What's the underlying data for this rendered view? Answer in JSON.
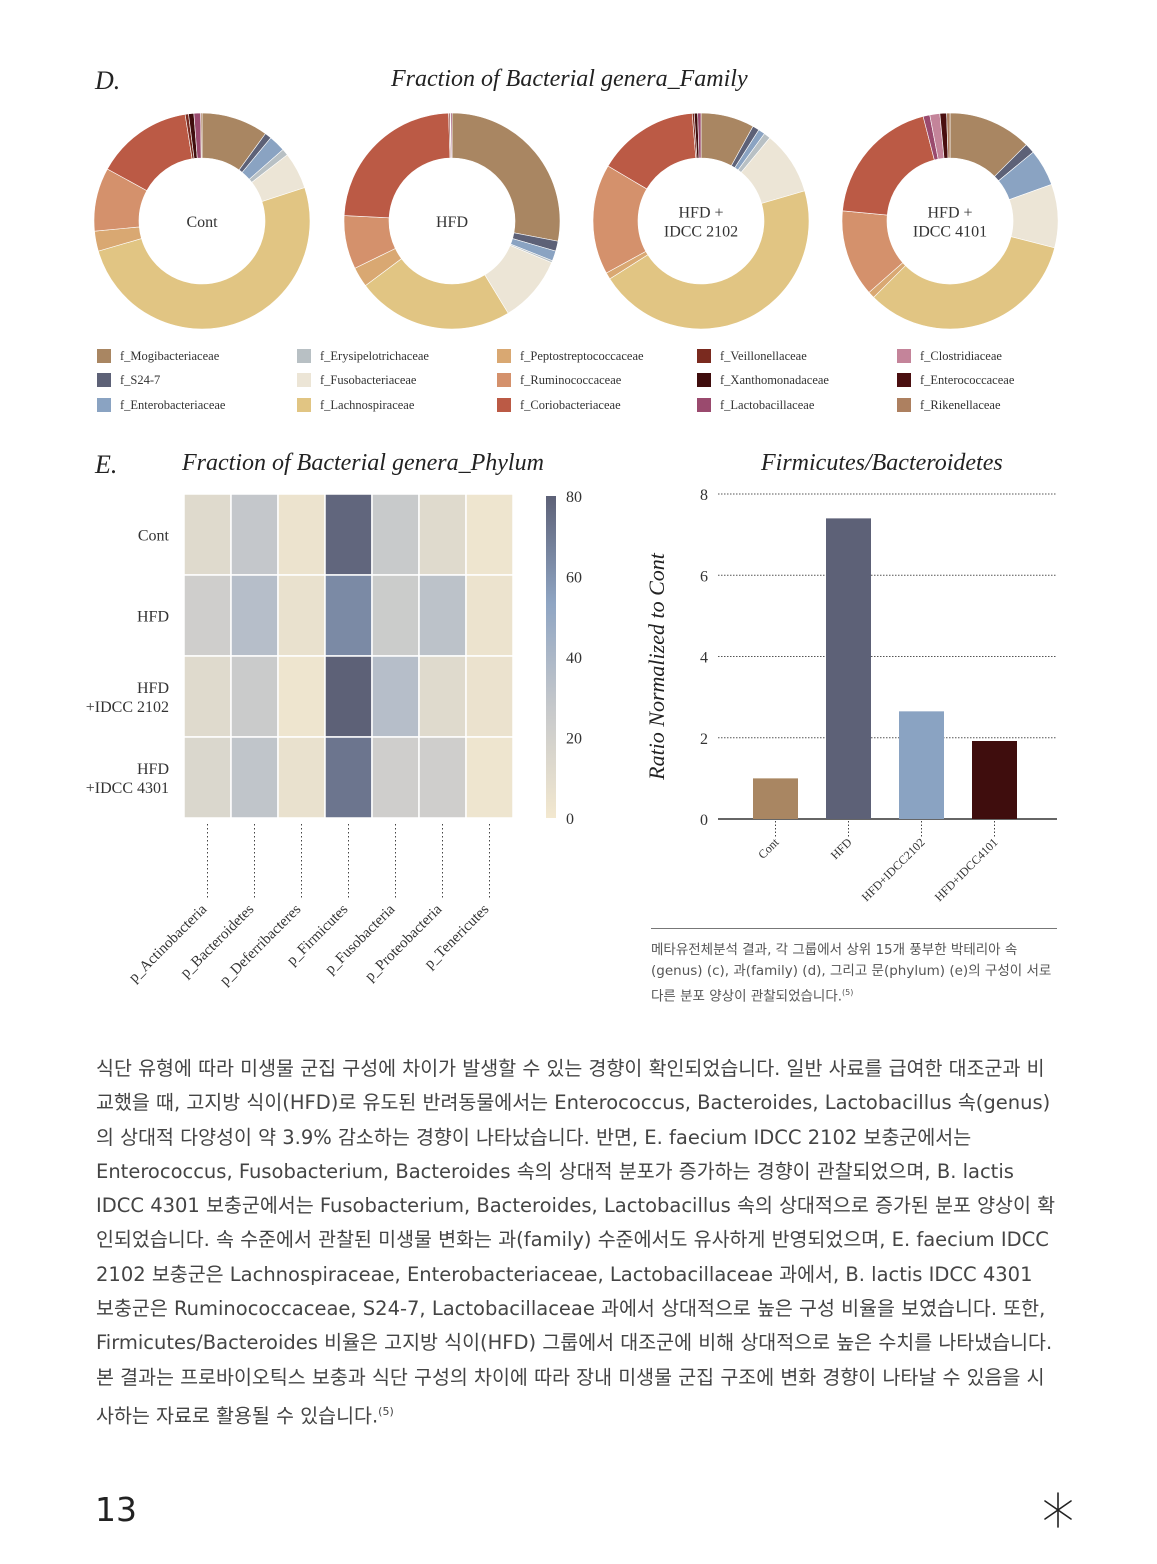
{
  "panel_d": {
    "letter": "D.",
    "title": "Fraction of Bacterial genera_Family",
    "groups": [
      "Cont",
      "HFD",
      "HFD + IDCC 2102",
      "HFD + IDCC 4101"
    ],
    "group_lines": [
      [
        "Cont"
      ],
      [
        "HFD"
      ],
      [
        "HFD +",
        "IDCC 2102"
      ],
      [
        "HFD +",
        "IDCC 4101"
      ]
    ]
  },
  "legend": [
    {
      "label": "f_Mogibacteriaceae",
      "color": "#a98662"
    },
    {
      "label": "f_S24-7",
      "color": "#5d6177"
    },
    {
      "label": "f_Enterobacteriaceae",
      "color": "#8aa3c2"
    },
    {
      "label": "f_Erysipelotrichaceae",
      "color": "#b8c0c4"
    },
    {
      "label": "f_Fusobacteriaceae",
      "color": "#ece5d6"
    },
    {
      "label": "f_Lachnospiraceae",
      "color": "#e1c583"
    },
    {
      "label": "f_Peptostreptococcaceae",
      "color": "#d9a872"
    },
    {
      "label": "f_Ruminococcaceae",
      "color": "#d4916c"
    },
    {
      "label": "f_Coriobacteriaceae",
      "color": "#bb5a45"
    },
    {
      "label": "f_Veillonellaceae",
      "color": "#7a2a1f"
    },
    {
      "label": "f_Xanthomonadaceae",
      "color": "#3f0d0d"
    },
    {
      "label": "f_Lactobacillaceae",
      "color": "#9a4a6e"
    },
    {
      "label": "f_Clostridiaceae",
      "color": "#c4849a"
    },
    {
      "label": "f_Enterococcaceae",
      "color": "#4a0f10"
    },
    {
      "label": "f_Rikenellaceae",
      "color": "#ad8060"
    }
  ],
  "panel_e": {
    "letter": "E.",
    "heatmap_title": "Fraction of Bacterial genera_Phylum",
    "bar_title": "Firmicutes/Bacteroidetes"
  },
  "chart_data": [
    {
      "type": "pie",
      "title": "Fraction of Bacterial genera_Family",
      "note": "donut charts, one per group; fractions estimated from slice areas",
      "categories": [
        "f_Mogibacteriaceae",
        "f_S24-7",
        "f_Enterobacteriaceae",
        "f_Erysipelotrichaceae",
        "f_Fusobacteriaceae",
        "f_Lachnospiraceae",
        "f_Peptostreptococcaceae",
        "f_Ruminococcaceae",
        "f_Coriobacteriaceae",
        "f_Veillonellaceae",
        "f_Xanthomonadaceae",
        "f_Lactobacillaceae",
        "f_Clostridiaceae",
        "f_Enterococcaceae",
        "f_Rikenellaceae"
      ],
      "series": [
        {
          "name": "Cont",
          "values": [
            10.0,
            1.0,
            2.5,
            1.0,
            5.5,
            50.5,
            3.0,
            9.5,
            14.5,
            0.5,
            0.8,
            1.0,
            0.0,
            0.0,
            0.2
          ]
        },
        {
          "name": "HFD",
          "values": [
            28.0,
            1.5,
            1.5,
            0.3,
            10.0,
            23.5,
            3.0,
            8.0,
            23.7,
            0.2,
            0.1,
            0.2,
            0.0,
            0.0,
            0.0
          ]
        },
        {
          "name": "HFD + IDCC 2102",
          "values": [
            8.0,
            1.0,
            1.0,
            1.0,
            9.5,
            45.5,
            1.0,
            16.5,
            15.2,
            0.3,
            0.5,
            0.5,
            0.0,
            0.0,
            0.0
          ]
        },
        {
          "name": "HFD + IDCC 4101",
          "values": [
            12.5,
            1.5,
            5.5,
            0.0,
            9.5,
            33.5,
            1.0,
            13.0,
            19.5,
            0.0,
            0.0,
            1.0,
            1.5,
            1.0,
            0.5
          ]
        }
      ]
    },
    {
      "type": "heatmap",
      "title": "Fraction of Bacterial genera_Phylum",
      "rows": [
        "Cont",
        "HFD",
        "HFD\n+IDCC 2102",
        "HFD\n+IDCC 4301"
      ],
      "columns": [
        "p_Actinobacteria",
        "p_Bacteroidetes",
        "p_Deferribacteres",
        "p_Firmicutes",
        "p_Fusobacteria",
        "p_Proteobacteria",
        "p_Tenericutes"
      ],
      "values": [
        [
          12,
          28,
          4,
          78,
          26,
          12,
          3
        ],
        [
          22,
          35,
          6,
          64,
          24,
          32,
          4
        ],
        [
          12,
          25,
          3,
          82,
          35,
          12,
          5
        ],
        [
          15,
          30,
          6,
          72,
          22,
          22,
          3
        ]
      ],
      "colorbar": {
        "min": 0,
        "max": 80,
        "ticks": [
          0,
          20,
          40,
          60,
          80
        ],
        "colors": [
          "#f3e8cf",
          "#c7c9cb",
          "#8fa5c3",
          "#5d6177"
        ]
      }
    },
    {
      "type": "bar",
      "title": "Firmicutes/Bacteroidetes",
      "categories": [
        "Cont",
        "HFD",
        "HFD+IDCC2102",
        "HFD+IDCC4101"
      ],
      "values": [
        1.0,
        7.4,
        2.65,
        1.92
      ],
      "colors": [
        "#a98662",
        "#5d6177",
        "#8aa3c2",
        "#3f0d0d"
      ],
      "ylabel": "Ratio Normalized to Cont",
      "ylim": [
        0,
        8
      ],
      "yticks": [
        0,
        2,
        4,
        6,
        8
      ],
      "grid": true
    }
  ],
  "caption": {
    "text": "메타유전체분석 결과, 각 그룹에서 상위 15개 풍부한 박테리아 속(genus) (c), 과(family) (d), 그리고 문(phylum) (e)의 구성이 서로 다른 분포 양상이 관찰되었습니다.",
    "ref": "(5)"
  },
  "body": {
    "text": "식단 유형에 따라 미생물 군집 구성에 차이가 발생할 수 있는 경향이 확인되었습니다. 일반 사료를 급여한 대조군과 비교했을 때, 고지방 식이(HFD)로 유도된 반려동물에서는 Enterococcus, Bacteroides, Lactobacillus 속(genus)의 상대적 다양성이 약 3.9% 감소하는 경향이 나타났습니다. 반면, E. faecium IDCC 2102 보충군에서는 Enterococcus, Fusobacterium, Bacteroides 속의 상대적 분포가 증가하는 경향이 관찰되었으며, B. lactis IDCC 4301 보충군에서는 Fusobacterium, Bacteroides, Lactobacillus 속의 상대적으로 증가된 분포 양상이 확인되었습니다. 속 수준에서 관찰된 미생물 변화는 과(family) 수준에서도 유사하게 반영되었으며, E. faecium IDCC 2102 보충군은 Lachnospiraceae, Enterobacteriaceae, Lactobacillaceae 과에서, B. lactis IDCC 4301 보충군은 Ruminococcaceae, S24-7, Lactobacillaceae 과에서 상대적으로 높은 구성 비율을 보였습니다. 또한, Firmicutes/Bacteroides 비율은 고지방 식이(HFD) 그룹에서 대조군에 비해 상대적으로 높은 수치를 나타냈습니다. 본 결과는 프로바이오틱스 보충과 식단 구성의 차이에 따라 장내 미생물 군집 구조에 변화 경향이 나타날 수 있음을 시사하는 자료로 활용될 수 있습니다.",
    "ref": "(5)"
  },
  "page_number": "13",
  "footer_icon": "asterisk-star-icon"
}
